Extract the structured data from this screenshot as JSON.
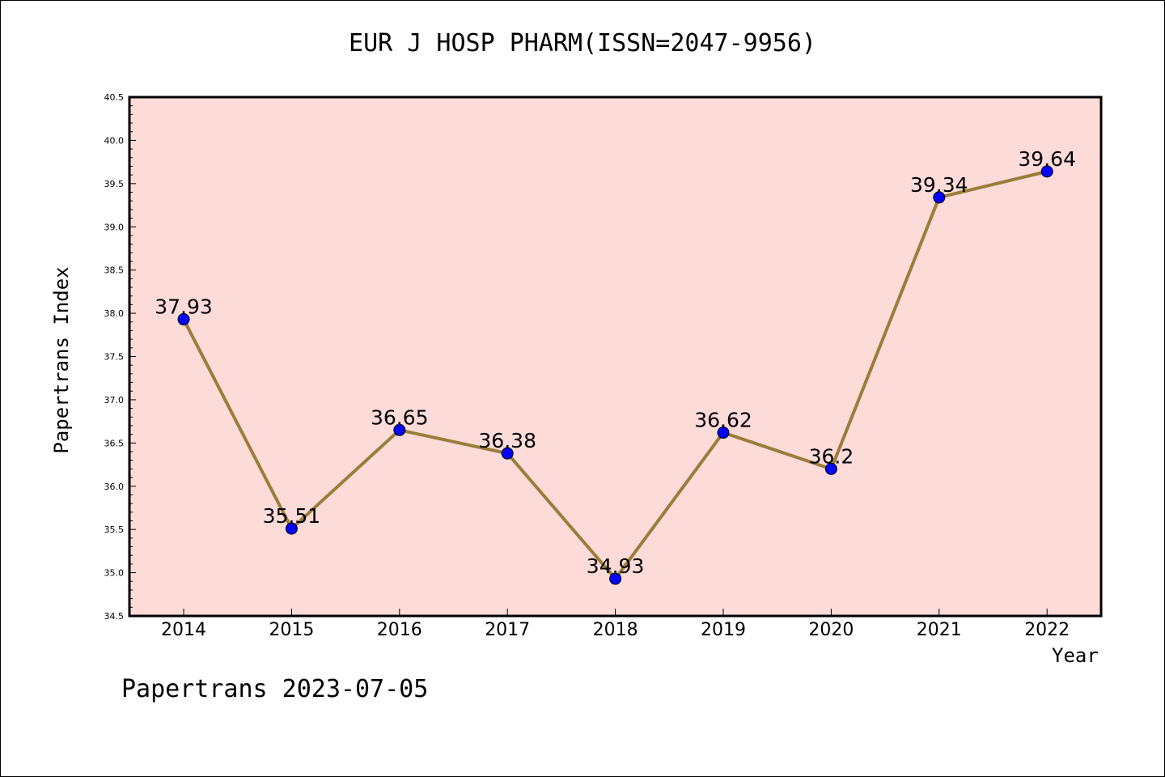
{
  "chart_data": {
    "type": "line",
    "title": "EUR J HOSP PHARM(ISSN=2047-9956)",
    "xlabel": "Year",
    "ylabel": "Papertrans Index",
    "x": [
      "2014",
      "2015",
      "2016",
      "2017",
      "2018",
      "2019",
      "2020",
      "2021",
      "2022"
    ],
    "series": [
      {
        "values": [
          37.93,
          35.51,
          36.65,
          36.38,
          34.93,
          36.62,
          36.2,
          39.34,
          39.64
        ],
        "labels": [
          "37.93",
          "35.51",
          "36.65",
          "36.38",
          "34.93",
          "36.62",
          "36.2",
          "39.34",
          "39.64"
        ]
      }
    ],
    "ylim": [
      34.5,
      40.5
    ],
    "yticks": [
      "34.5",
      "35.0",
      "35.5",
      "36.0",
      "36.5",
      "37.0",
      "37.5",
      "38.0",
      "38.5",
      "39.0",
      "39.5",
      "40.0",
      "40.5"
    ],
    "grid": false,
    "colors": {
      "plot_background": "#fddbd8",
      "line": "#9a7d3a",
      "marker": "#0000ff"
    }
  },
  "footer": "Papertrans 2023-07-05"
}
